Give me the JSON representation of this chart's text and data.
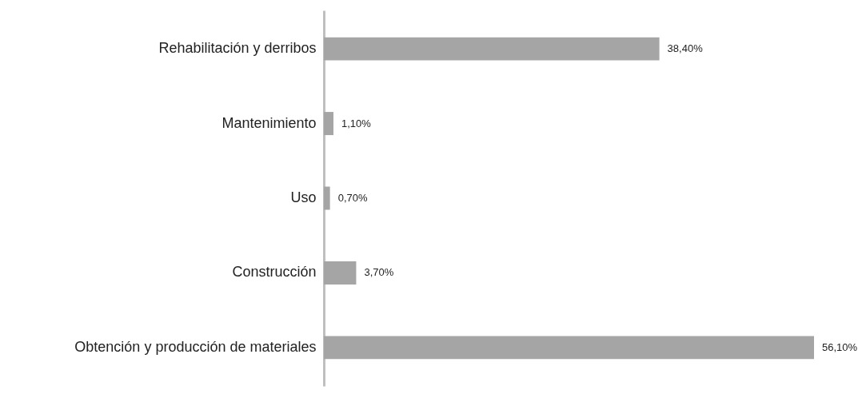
{
  "chart_data": {
    "type": "bar",
    "orientation": "horizontal",
    "categories": [
      "Rehabilitación y derribos",
      "Mantenimiento",
      "Uso",
      "Construcción",
      "Obtención y producción de materiales"
    ],
    "values": [
      38.4,
      1.1,
      0.7,
      3.7,
      56.1
    ],
    "value_labels": [
      "38,40%",
      "1,10%",
      "0,70%",
      "3,70%",
      "56,10%"
    ],
    "color": "#a5a5a5"
  }
}
